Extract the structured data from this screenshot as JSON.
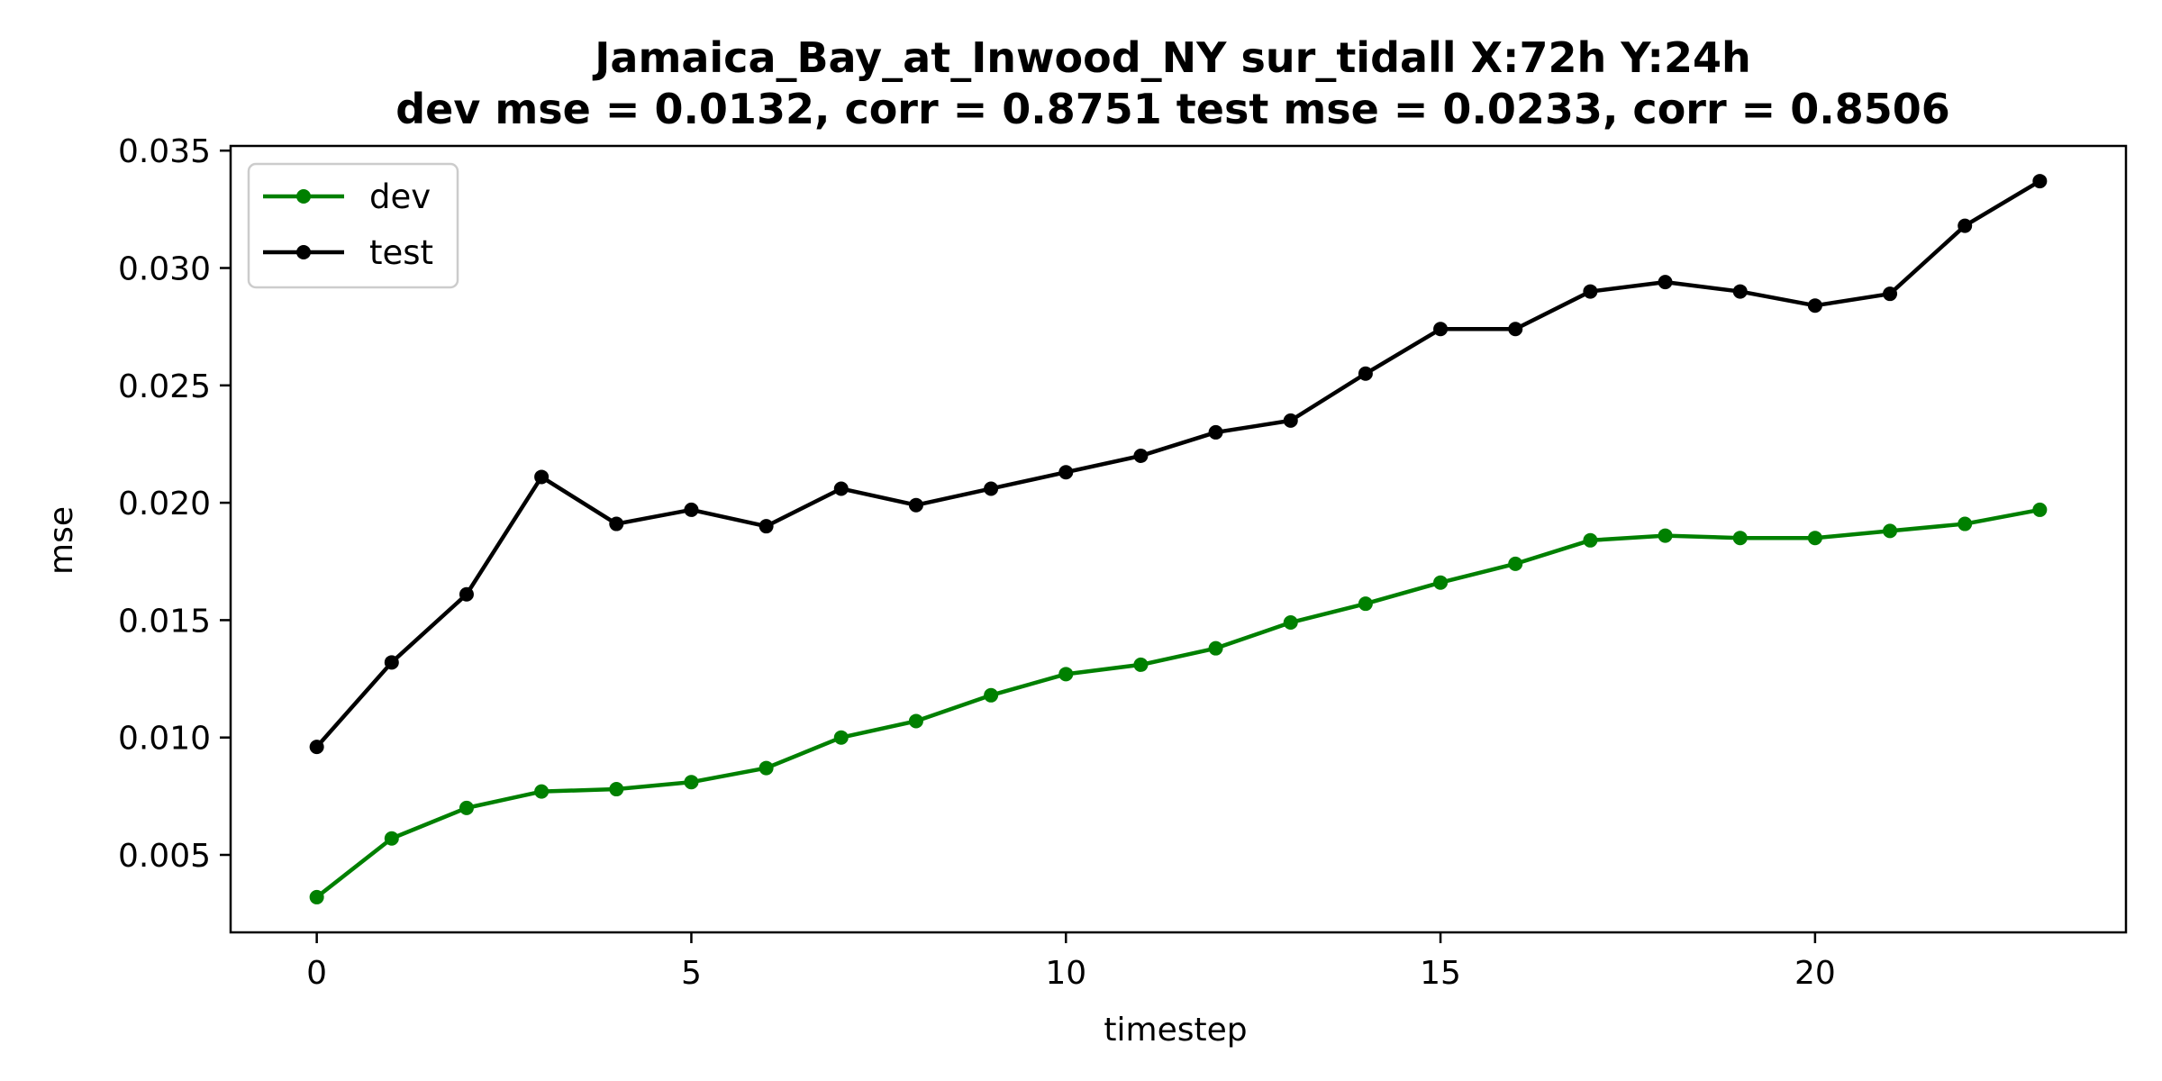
{
  "chart_data": {
    "type": "line",
    "title": "Jamaica_Bay_at_Inwood_NY   sur_tidall   X:72h   Y:24h",
    "subtitle": "dev mse = 0.0132, corr = 0.8751   test mse = 0.0233, corr = 0.8506",
    "xlabel": "timestep",
    "ylabel": "mse",
    "xlim": [
      -1.15,
      24.15
    ],
    "ylim": [
      0.0017,
      0.0352
    ],
    "xticks": [
      0,
      5,
      10,
      15,
      20
    ],
    "xtick_labels": [
      "0",
      "5",
      "10",
      "15",
      "20"
    ],
    "yticks": [
      0.005,
      0.01,
      0.015,
      0.02,
      0.025,
      0.03,
      0.035
    ],
    "ytick_labels": [
      "0.005",
      "0.010",
      "0.015",
      "0.020",
      "0.025",
      "0.030",
      "0.035"
    ],
    "legend_position": "top-left",
    "grid": false,
    "x": [
      0,
      1,
      2,
      3,
      4,
      5,
      6,
      7,
      8,
      9,
      10,
      11,
      12,
      13,
      14,
      15,
      16,
      17,
      18,
      19,
      20,
      21,
      22,
      23
    ],
    "series": [
      {
        "name": "dev",
        "color": "#008000",
        "values": [
          0.0032,
          0.0057,
          0.007,
          0.0077,
          0.0078,
          0.0081,
          0.0087,
          0.01,
          0.0107,
          0.0118,
          0.0127,
          0.0131,
          0.0138,
          0.0149,
          0.0157,
          0.0166,
          0.0174,
          0.0184,
          0.0186,
          0.0185,
          0.0185,
          0.0188,
          0.0191,
          0.0197
        ]
      },
      {
        "name": "test",
        "color": "#000000",
        "values": [
          0.0096,
          0.0132,
          0.0161,
          0.0211,
          0.0191,
          0.0197,
          0.019,
          0.0206,
          0.0199,
          0.0206,
          0.0213,
          0.022,
          0.023,
          0.0235,
          0.0255,
          0.0274,
          0.0274,
          0.029,
          0.0294,
          0.029,
          0.0284,
          0.0289,
          0.0318,
          0.0337
        ]
      }
    ]
  }
}
